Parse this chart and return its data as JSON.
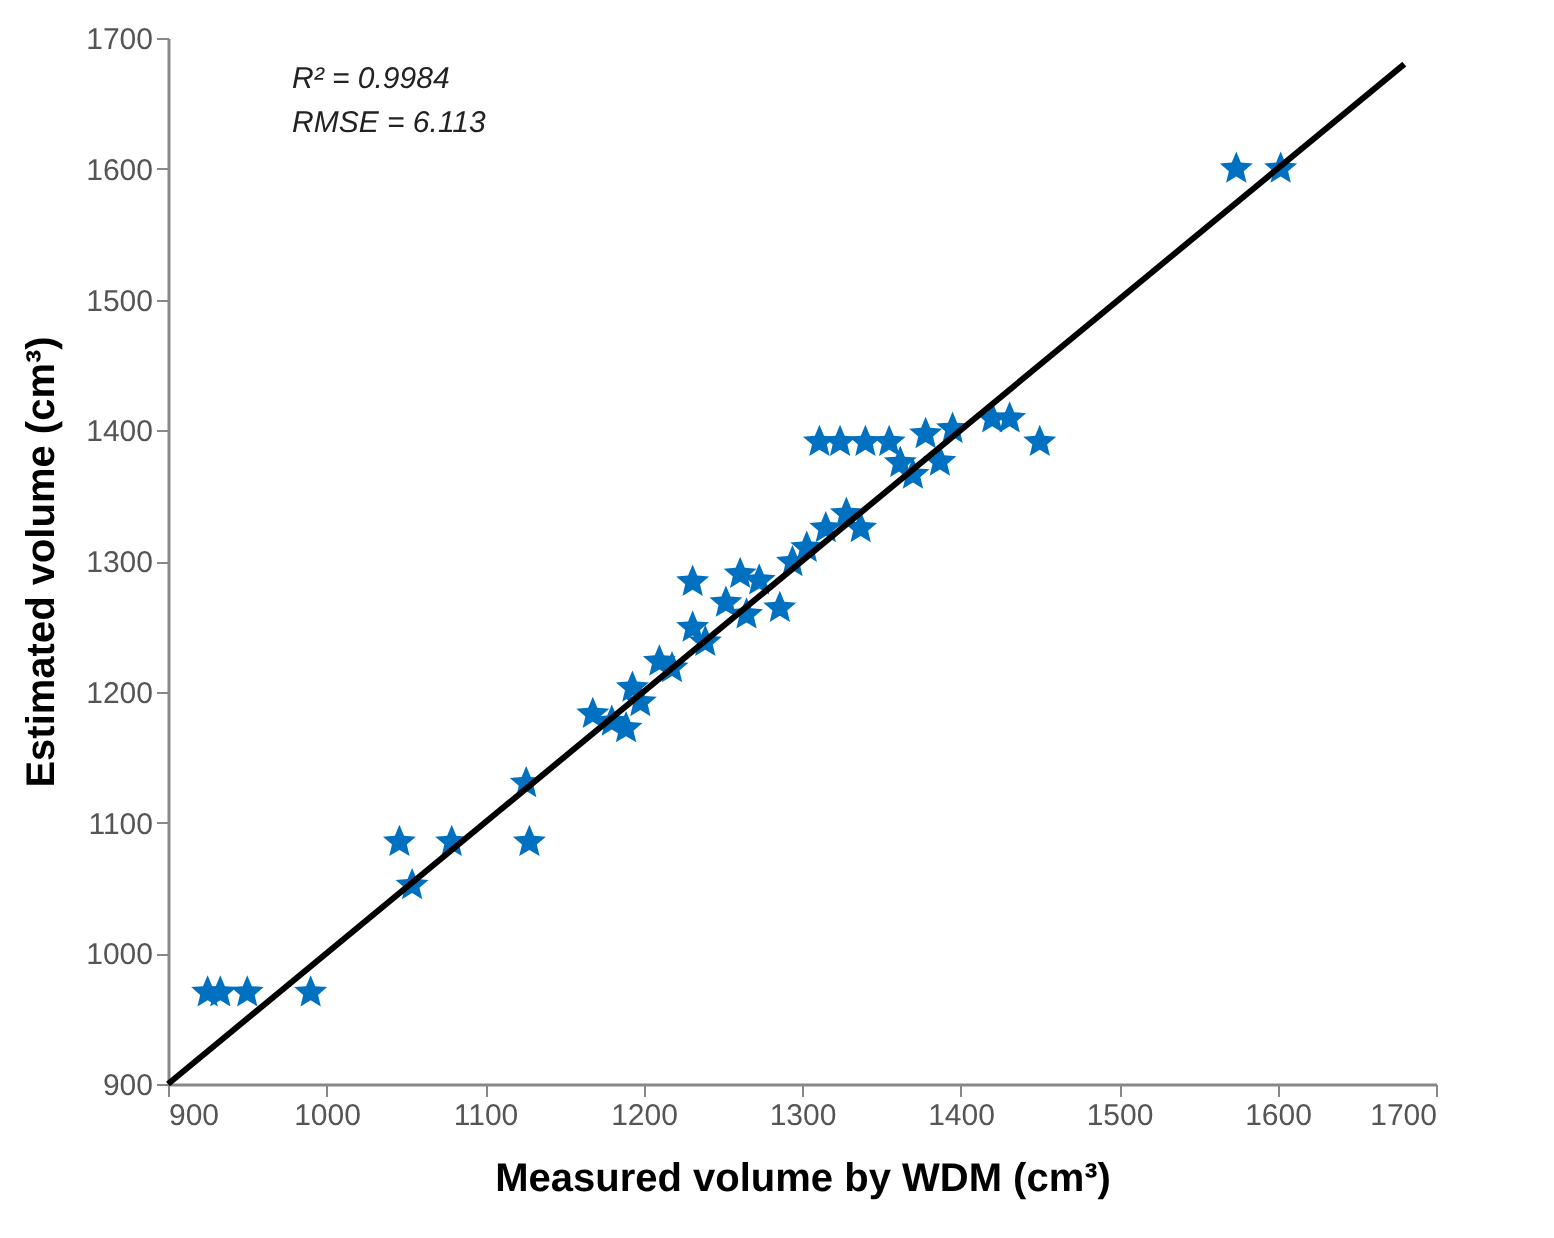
{
  "chart_data": {
    "type": "scatter",
    "xlabel": "Measured volume by WDM (cm³)",
    "ylabel": "Estimated volume (cm³)",
    "annotations": [
      "R² = 0.9984",
      "RMSE = 6.113"
    ],
    "xlim": [
      900,
      1700
    ],
    "xticks": [
      900,
      1000,
      1100,
      1200,
      1300,
      1400,
      1500,
      1600,
      1700
    ],
    "ylim": [
      900,
      1700
    ],
    "yticks": [
      900,
      1000,
      1100,
      1200,
      1300,
      1400,
      1500,
      1600,
      1700
    ],
    "grid": false,
    "series": [
      {
        "color": "#0070c0",
        "marker": "star",
        "x": [
          925,
          933,
          950,
          990,
          1046,
          1054,
          1079,
          1126,
          1128,
          1168,
          1180,
          1189,
          1193,
          1198,
          1210,
          1218,
          1231,
          1231,
          1239,
          1252,
          1261,
          1265,
          1273,
          1286,
          1294,
          1303,
          1311,
          1315,
          1324,
          1328,
          1337,
          1340,
          1355,
          1362,
          1370,
          1378,
          1387,
          1395,
          1420,
          1431,
          1450,
          1574,
          1602
        ],
        "values": [
          970,
          970,
          970,
          970,
          1085,
          1052,
          1085,
          1130,
          1085,
          1183,
          1177,
          1172,
          1203,
          1192,
          1223,
          1218,
          1249,
          1284,
          1238,
          1268,
          1290,
          1259,
          1285,
          1264,
          1299,
          1310,
          1391,
          1325,
          1391,
          1336,
          1325,
          1391,
          1391,
          1375,
          1366,
          1397,
          1376,
          1401,
          1409,
          1409,
          1391,
          1600,
          1600
        ]
      },
      {
        "type": "line",
        "color": "#000000",
        "x": [
          900,
          1680
        ],
        "values": [
          900,
          1680
        ]
      }
    ]
  }
}
